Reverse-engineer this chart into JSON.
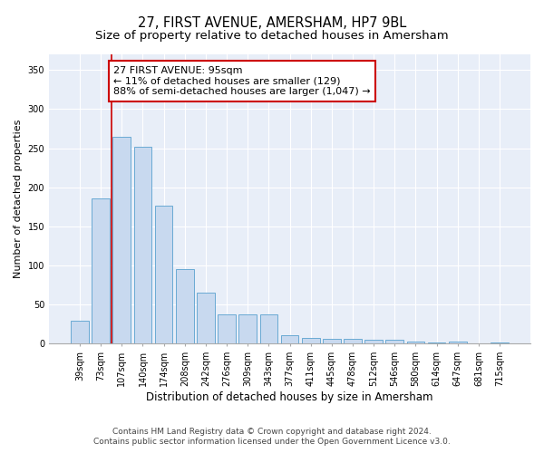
{
  "title": "27, FIRST AVENUE, AMERSHAM, HP7 9BL",
  "subtitle": "Size of property relative to detached houses in Amersham",
  "xlabel": "Distribution of detached houses by size in Amersham",
  "ylabel": "Number of detached properties",
  "categories": [
    "39sqm",
    "73sqm",
    "107sqm",
    "140sqm",
    "174sqm",
    "208sqm",
    "242sqm",
    "276sqm",
    "309sqm",
    "343sqm",
    "377sqm",
    "411sqm",
    "445sqm",
    "478sqm",
    "512sqm",
    "546sqm",
    "580sqm",
    "614sqm",
    "647sqm",
    "681sqm",
    "715sqm"
  ],
  "values": [
    30,
    186,
    265,
    252,
    176,
    95,
    65,
    38,
    38,
    38,
    11,
    8,
    6,
    6,
    5,
    5,
    3,
    2,
    3,
    1,
    2
  ],
  "bar_color": "#c8d9ef",
  "bar_edge_color": "#6aaad4",
  "property_line_color": "#cc0000",
  "annotation_text": "27 FIRST AVENUE: 95sqm\n← 11% of detached houses are smaller (129)\n88% of semi-detached houses are larger (1,047) →",
  "annotation_box_color": "#ffffff",
  "annotation_box_edge": "#cc0000",
  "ylim": [
    0,
    370
  ],
  "yticks": [
    0,
    50,
    100,
    150,
    200,
    250,
    300,
    350
  ],
  "footer_line1": "Contains HM Land Registry data © Crown copyright and database right 2024.",
  "footer_line2": "Contains public sector information licensed under the Open Government Licence v3.0.",
  "fig_bg_color": "#ffffff",
  "plot_bg_color": "#e8eef8",
  "title_fontsize": 10.5,
  "subtitle_fontsize": 9.5,
  "tick_fontsize": 7,
  "ylabel_fontsize": 8,
  "xlabel_fontsize": 8.5,
  "footer_fontsize": 6.5,
  "annotation_fontsize": 8
}
